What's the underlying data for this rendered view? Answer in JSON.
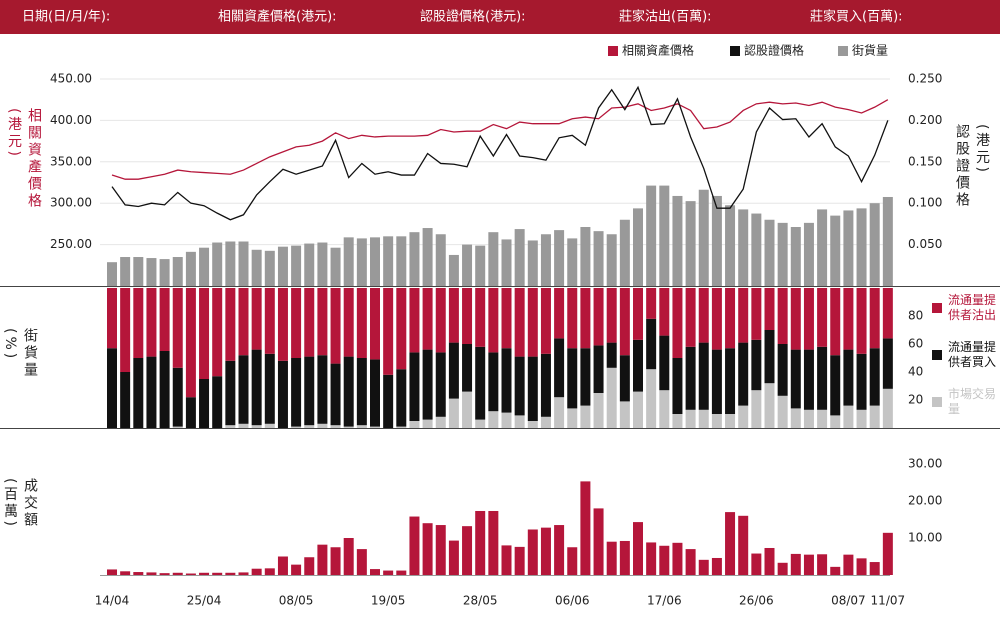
{
  "header": {
    "labels": [
      "日期(日/月/年):",
      "相關資產價格(港元):",
      "認股證價格(港元):",
      "莊家沽出(百萬):",
      "莊家買入(百萬):"
    ]
  },
  "chart_data": [
    {
      "type": "line",
      "ylabel": "相關資產價格(港元)",
      "y2label": "認股證價格(港元)",
      "grid": true,
      "ylim": [
        200,
        450
      ],
      "yticks": [
        {
          "value": 250,
          "label": "250.00"
        },
        {
          "value": 300,
          "label": "300.00"
        },
        {
          "value": 350,
          "label": "350.00"
        },
        {
          "value": 400,
          "label": "400.00"
        },
        {
          "value": 450,
          "label": "450.00"
        }
      ],
      "y2lim": [
        0,
        0.25
      ],
      "y2ticks": [
        {
          "value": 0.05,
          "label": "0.050"
        },
        {
          "value": 0.1,
          "label": "0.100"
        },
        {
          "value": 0.15,
          "label": "0.150"
        },
        {
          "value": 0.2,
          "label": "0.200"
        },
        {
          "value": 0.25,
          "label": "0.250"
        }
      ],
      "y3lim": [
        0,
        200
      ],
      "series": [
        {
          "name": "相關資產價格",
          "color": "#b5163a",
          "values": [
            334,
            329,
            329,
            332,
            335,
            340,
            338,
            337,
            336,
            335,
            340,
            348,
            356,
            362,
            368,
            370,
            375,
            385,
            378,
            382,
            380,
            381,
            381,
            381,
            382,
            389,
            386,
            387,
            387,
            395,
            390,
            398,
            396,
            396,
            396,
            402,
            404,
            402,
            415,
            416,
            420,
            412,
            415,
            420,
            412,
            390,
            392,
            398,
            412,
            420,
            422,
            420,
            421,
            418,
            422,
            416,
            413,
            409,
            416,
            425
          ]
        },
        {
          "name": "認股證價格",
          "color": "#111111",
          "axis": "y2",
          "values": [
            0.12,
            0.098,
            0.096,
            0.1,
            0.098,
            0.113,
            0.1,
            0.097,
            0.088,
            0.08,
            0.086,
            0.11,
            0.126,
            0.141,
            0.135,
            0.14,
            0.145,
            0.176,
            0.131,
            0.148,
            0.135,
            0.138,
            0.134,
            0.134,
            0.16,
            0.148,
            0.147,
            0.144,
            0.181,
            0.157,
            0.183,
            0.157,
            0.155,
            0.152,
            0.179,
            0.182,
            0.17,
            0.215,
            0.237,
            0.213,
            0.24,
            0.195,
            0.196,
            0.226,
            0.18,
            0.142,
            0.094,
            0.094,
            0.117,
            0.186,
            0.215,
            0.201,
            0.202,
            0.18,
            0.196,
            0.168,
            0.157,
            0.126,
            0.158,
            0.2
          ]
        },
        {
          "name": "街貨量",
          "color": "#999999",
          "type": "bar",
          "axis": "y3",
          "values": [
            23,
            28,
            28,
            27,
            26,
            28,
            33,
            37,
            42,
            43,
            43,
            35,
            34,
            38,
            39,
            41,
            42,
            37,
            47,
            46,
            47,
            48,
            48,
            52,
            56,
            50,
            30,
            40,
            39,
            52,
            45,
            55,
            44,
            50,
            54,
            46,
            57,
            53,
            50,
            64,
            75,
            97,
            97,
            87,
            82,
            93,
            87,
            78,
            74,
            70,
            64,
            61,
            57,
            61,
            74,
            68,
            73,
            75,
            80,
            86
          ]
        }
      ]
    },
    {
      "type": "stacked_bar",
      "ylabel": "街貨量(%)",
      "ylim": [
        0,
        100
      ],
      "yticks": [
        20,
        40,
        60,
        80
      ],
      "series": [
        {
          "name": "流通量提供者沽出",
          "color": "#b5163a",
          "values": [
            43,
            60,
            50,
            49,
            45,
            57,
            78,
            65,
            63,
            52,
            48,
            44,
            47,
            52,
            50,
            49,
            48,
            54,
            49,
            50,
            51,
            62,
            58,
            46,
            44,
            46,
            39,
            40,
            42,
            46,
            43,
            49,
            49,
            47,
            36,
            43,
            43,
            41,
            39,
            48,
            37,
            22,
            34,
            50,
            42,
            39,
            44,
            43,
            39,
            37,
            30,
            40,
            44,
            44,
            42,
            48,
            44,
            47,
            43,
            36
          ]
        },
        {
          "name": "流通量提供者買入",
          "color": "#111111",
          "values": [
            57,
            40,
            50,
            51,
            55,
            42,
            22,
            35,
            37,
            46,
            49,
            54,
            50,
            48,
            49,
            49,
            49,
            44,
            50,
            48,
            48,
            38,
            41,
            49,
            50,
            46,
            40,
            34,
            52,
            42,
            46,
            42,
            46,
            45,
            42,
            43,
            41,
            34,
            18,
            33,
            37,
            36,
            39,
            40,
            45,
            48,
            46,
            47,
            45,
            36,
            38,
            37,
            42,
            43,
            45,
            43,
            40,
            40,
            41,
            36
          ]
        },
        {
          "name": "市場交易量",
          "color": "#c4c4c4",
          "values": [
            0,
            0,
            0,
            0,
            0,
            1,
            0,
            0,
            0,
            2,
            3,
            2,
            3,
            0,
            1,
            2,
            3,
            2,
            1,
            2,
            1,
            0,
            1,
            5,
            6,
            8,
            21,
            26,
            6,
            12,
            11,
            9,
            5,
            8,
            22,
            14,
            16,
            25,
            43,
            19,
            26,
            42,
            27,
            10,
            13,
            13,
            10,
            10,
            16,
            27,
            32,
            23,
            14,
            13,
            13,
            9,
            16,
            13,
            16,
            28
          ]
        }
      ]
    },
    {
      "type": "bar",
      "ylabel": "成交額(百萬)",
      "color": "#b5163a",
      "ylim": [
        0,
        30
      ],
      "yticks": [
        {
          "value": 10,
          "label": "10.00"
        },
        {
          "value": 20,
          "label": "20.00"
        },
        {
          "value": 30,
          "label": "30.00"
        }
      ],
      "categories": [
        "14/04",
        null,
        null,
        null,
        null,
        null,
        null,
        "25/04",
        null,
        null,
        null,
        null,
        null,
        null,
        "08/05",
        null,
        null,
        null,
        null,
        null,
        null,
        "19/05",
        null,
        null,
        null,
        null,
        null,
        null,
        "28/05",
        null,
        null,
        null,
        null,
        null,
        null,
        "06/06",
        null,
        null,
        null,
        null,
        null,
        null,
        "17/06",
        null,
        null,
        null,
        null,
        null,
        null,
        "26/06",
        null,
        null,
        null,
        null,
        null,
        null,
        "08/07",
        null,
        null,
        "11/07"
      ],
      "values": [
        1.5,
        1,
        0.8,
        0.7,
        0.5,
        0.6,
        0.4,
        0.6,
        0.6,
        0.6,
        0.7,
        1.7,
        1.8,
        5,
        2.8,
        4.8,
        8.2,
        7.5,
        10,
        7,
        1.6,
        1.2,
        1.2,
        15.8,
        14,
        13.5,
        9.3,
        13.2,
        17.3,
        17.3,
        8,
        7.6,
        12.3,
        12.8,
        13.5,
        7.5,
        25.3,
        18,
        9,
        9.2,
        14.3,
        8.8,
        7.9,
        8.7,
        7,
        4.1,
        4.6,
        17,
        16,
        5.8,
        7.3,
        3.3,
        5.7,
        5.5,
        5.6,
        2.2,
        5.5,
        4.5,
        3.5,
        11.4
      ]
    }
  ]
}
